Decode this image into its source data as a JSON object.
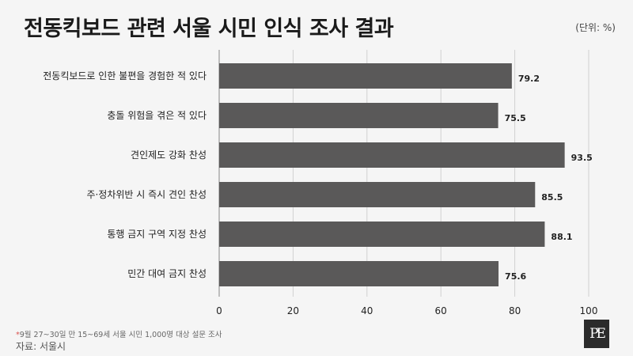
{
  "header": {
    "title": "전동킥보드 관련 서울 시민 인식 조사 결과",
    "unit": "(단위: %)"
  },
  "footer": {
    "footnote_mark": "*",
    "footnote": "9월 27~30일 만 15~69세 서울 시민 1,000명 대상 설문 조사",
    "source": "자료: 서울시"
  },
  "logo": {
    "text": "PE"
  },
  "colors": {
    "bar": "#5a5959",
    "grid": "#d0d0d0",
    "background": "#f5f5f5"
  },
  "chart_data": {
    "type": "bar",
    "orientation": "horizontal",
    "categories": [
      "전동킥보드로 인한 불편을 경험한 적 있다",
      "충돌 위험을 겪은 적 있다",
      "견인제도 강화 찬성",
      "주·정차위반 시 즉시 견인 찬성",
      "통행 금지 구역 지정 찬성",
      "민간 대여 금지 찬성"
    ],
    "values": [
      79.2,
      75.5,
      93.5,
      85.5,
      88.1,
      75.6
    ],
    "value_labels": [
      "79.2",
      "75.5",
      "93.5",
      "85.5",
      "88.1",
      "75.6"
    ],
    "xlim": [
      0,
      100
    ],
    "xticks": [
      0,
      20,
      40,
      60,
      80,
      100
    ],
    "xtick_labels": [
      "0",
      "20",
      "40",
      "60",
      "80",
      "100"
    ],
    "grid": true
  }
}
